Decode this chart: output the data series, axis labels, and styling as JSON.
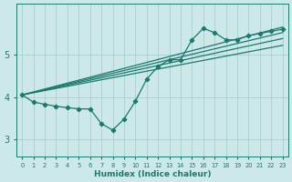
{
  "bg_color": "#cce8e8",
  "grid_color": "#aacece",
  "line_color": "#1a7a6e",
  "xlabel": "Humidex (Indice chaleur)",
  "xlim": [
    -0.5,
    23.5
  ],
  "ylim": [
    2.6,
    6.2
  ],
  "yticks": [
    3,
    4,
    5
  ],
  "xticks": [
    0,
    1,
    2,
    3,
    4,
    5,
    6,
    7,
    8,
    9,
    10,
    11,
    12,
    13,
    14,
    15,
    16,
    17,
    18,
    19,
    20,
    21,
    22,
    23
  ],
  "main_x": [
    0,
    1,
    2,
    3,
    4,
    5,
    6,
    7,
    8,
    9,
    10,
    11,
    12,
    13,
    14,
    15,
    16,
    17,
    18,
    19,
    20,
    21,
    22,
    23
  ],
  "main_y": [
    4.05,
    3.88,
    3.83,
    3.78,
    3.75,
    3.72,
    3.72,
    3.37,
    3.22,
    3.48,
    3.9,
    4.42,
    4.72,
    4.88,
    4.88,
    5.35,
    5.62,
    5.52,
    5.35,
    5.35,
    5.45,
    5.5,
    5.55,
    5.6
  ],
  "trend_lines": [
    [
      0,
      4.05,
      23,
      5.22
    ],
    [
      0,
      4.05,
      23,
      5.38
    ],
    [
      0,
      4.05,
      23,
      5.52
    ],
    [
      0,
      4.05,
      23,
      5.65
    ]
  ]
}
